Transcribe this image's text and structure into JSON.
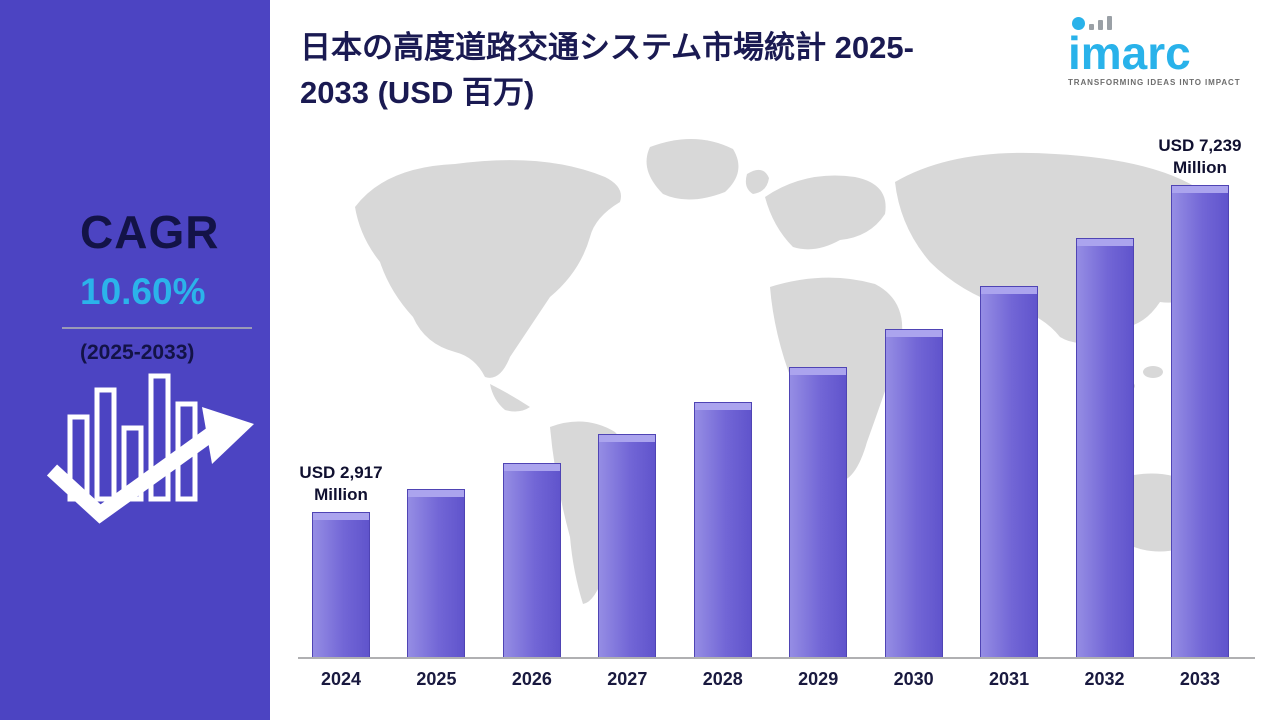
{
  "sidebar": {
    "cagr_label": "CAGR",
    "cagr_value": "10.60%",
    "cagr_period": "(2025-2033)",
    "colors": {
      "background": "#4c44c2",
      "text": "#131347",
      "accent": "#2bb3ea"
    }
  },
  "header": {
    "title_line1": "日本の高度道路交通システム市場統計 2025-",
    "title_line2": "2033 (USD 百万)",
    "logo": {
      "text": "imarc",
      "tagline": "TRANSFORMING IDEAS INTO IMPACT",
      "color": "#29b2ea"
    }
  },
  "chart_data": {
    "type": "bar",
    "title": "日本の高度道路交通システム市場統計 2025-2033 (USD 百万)",
    "unit": "USD Million",
    "categories": [
      "2024",
      "2025",
      "2026",
      "2027",
      "2028",
      "2029",
      "2030",
      "2031",
      "2032",
      "2033"
    ],
    "values": [
      2917,
      3226,
      3568,
      3946,
      4365,
      4827,
      5339,
      5905,
      6531,
      7239
    ],
    "callouts": [
      {
        "category": "2024",
        "line1": "USD 2,917",
        "line2": "Million"
      },
      {
        "category": "2033",
        "line1": "USD 7,239",
        "line2": "Million"
      }
    ],
    "cagr": "10.60%",
    "forecast_period": "2025-2033",
    "ylim": [
      1000,
      7500
    ],
    "grid": false,
    "legend": false,
    "bar_color": "#7266d6",
    "map_background_color": "#d8d8d8"
  }
}
